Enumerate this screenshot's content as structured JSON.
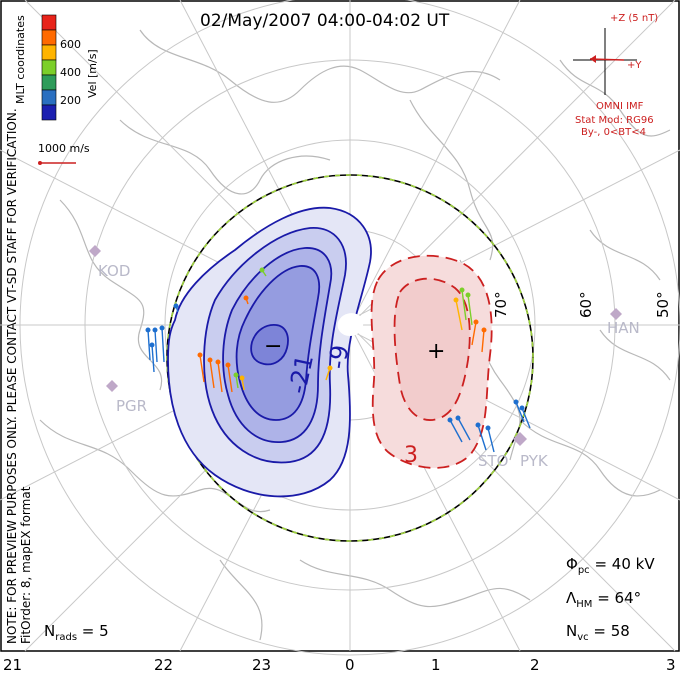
{
  "title": "02/May/2007 04:00-04:02 UT",
  "colorbar": {
    "label": "Vel [m/s]",
    "ticks": [
      "600",
      "400",
      "200"
    ],
    "colors": [
      "#e8231a",
      "#ff6a00",
      "#ffb400",
      "#7ccf2a",
      "#2e9c5a",
      "#2a6fc0",
      "#1b1fb0"
    ]
  },
  "coord_label": "MLT coordinates",
  "ref_vector_label": "1000 m/s",
  "side_note": "NOTE: FOR PREVIEW PURPOSES ONLY. PLEASE CONTACT VT-SD STAFF FOR VERIFICATION.",
  "fit_note": "FitOrder: 8, mapEX format",
  "imf": {
    "z_label": "+Z (5 nT)",
    "y_label": "+Y",
    "source": "OMNI IMF",
    "model": "Stat Mod: RG96",
    "condition": "By-, 0<BT<4"
  },
  "latitude_labels": [
    "70°",
    "60°",
    "50°"
  ],
  "stations": [
    "KOD",
    "PGR",
    "HAN",
    "STO",
    "PYK"
  ],
  "contour_labels": [
    "-21",
    "-9",
    "3"
  ],
  "cell_markers": {
    "negative": "−",
    "positive": "+"
  },
  "stats": {
    "phi_pc": "40 kV",
    "lambda_hm": "64°",
    "n_vc": "58",
    "n_rads": "5"
  },
  "mlt_axis": [
    "21",
    "22",
    "23",
    "0",
    "1",
    "2",
    "3"
  ],
  "colors": {
    "negative_cell": "#1a1aa8",
    "positive_cell": "#cc2020",
    "hm_boundary_dash": "#9ed23c"
  }
}
